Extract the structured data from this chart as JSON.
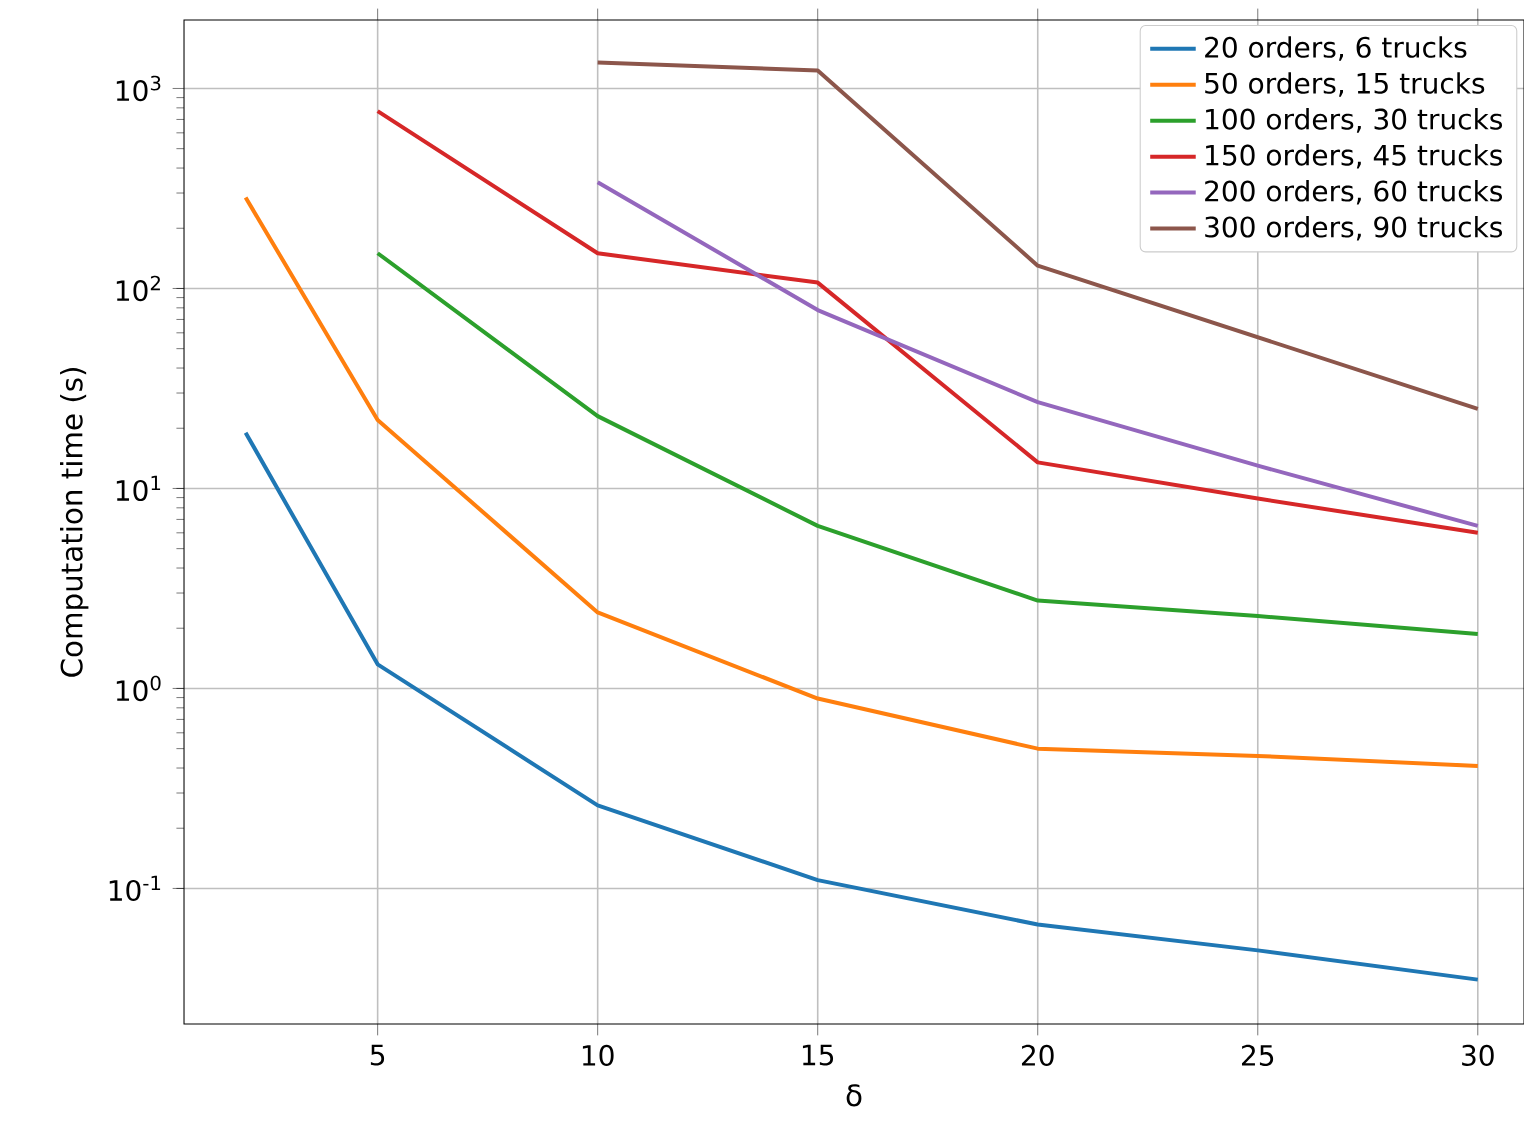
{
  "chart_data": {
    "type": "line",
    "xlabel": "δ",
    "ylabel": "Computation time (s)",
    "xlim": [
      0.6,
      31.05
    ],
    "ylim": [
      0.021,
      2200
    ],
    "log": "y",
    "xticks": [
      5,
      10,
      15,
      20,
      25,
      30
    ],
    "yticks": [
      {
        "value": 0.1,
        "label": "10$^{-1}$"
      },
      {
        "value": 1,
        "label": "10$^{0}$"
      },
      {
        "value": 10,
        "label": "10$^{1}$"
      },
      {
        "value": 100,
        "label": "10$^{2}$"
      },
      {
        "value": 1000,
        "label": "10$^{3}$"
      }
    ],
    "grid": true,
    "legend": "top right",
    "marker": "none",
    "line_style": "solid",
    "series": [
      {
        "name": "20 orders, 6 trucks",
        "color": "#1f77b4",
        "x": [
          2,
          5,
          10,
          15,
          20,
          25,
          30
        ],
        "values": [
          19,
          1.32,
          0.26,
          0.11,
          0.066,
          0.049,
          0.035
        ]
      },
      {
        "name": "50 orders, 15 trucks",
        "color": "#ff7f0e",
        "x": [
          2,
          5,
          10,
          15,
          20,
          25,
          30
        ],
        "values": [
          285,
          22,
          2.4,
          0.89,
          0.5,
          0.46,
          0.41
        ]
      },
      {
        "name": "100 orders, 30 trucks",
        "color": "#2ca02c",
        "x": [
          5,
          10,
          15,
          20,
          25,
          30
        ],
        "values": [
          150,
          23,
          6.5,
          2.75,
          2.3,
          1.87
        ]
      },
      {
        "name": "150 orders, 45 trucks",
        "color": "#d62728",
        "x": [
          5,
          10,
          15,
          20,
          25,
          30
        ],
        "values": [
          770,
          150,
          107,
          13.5,
          8.9,
          6.0
        ]
      },
      {
        "name": "200 orders, 60 trucks",
        "color": "#9467bd",
        "x": [
          10,
          15,
          20,
          25,
          30
        ],
        "values": [
          340,
          78,
          27,
          13,
          6.5
        ]
      },
      {
        "name": "300 orders, 90 trucks",
        "color": "#8c564b",
        "x": [
          10,
          15,
          20,
          30
        ],
        "values": [
          1350,
          1230,
          130,
          25
        ]
      }
    ]
  }
}
